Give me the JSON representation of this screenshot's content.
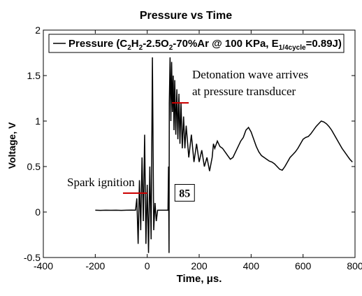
{
  "chart_data": {
    "type": "line",
    "title": "Pressure vs Time",
    "xlabel": "Time, μs.",
    "ylabel": "Voltage, V",
    "xlim": [
      -400,
      800
    ],
    "ylim": [
      -0.5,
      2
    ],
    "x_ticks": [
      -400,
      -200,
      0,
      200,
      400,
      600,
      800
    ],
    "y_ticks": [
      -0.5,
      0,
      0.5,
      1,
      1.5,
      2
    ],
    "x_tick_labels": [
      "-400",
      "-200",
      "0",
      "200",
      "400",
      "600",
      "800"
    ],
    "y_tick_labels": [
      "-0.5",
      "0",
      "0.5",
      "1",
      "1.5",
      "2"
    ],
    "grid": false,
    "legend_position": "top",
    "legend": {
      "prefix": "Pressure (C",
      "sub1": "2",
      "mid1": "H",
      "sub2": "2",
      "mid2": "-2.5O",
      "sub3": "2",
      "mid3": "-70%Ar @ 100 KPa, E",
      "sub4": "1/4cycle",
      "suffix": "=0.89J)"
    },
    "colors": {
      "series": "#000000",
      "annotation_arrow": "#cc0000",
      "axes": "#000000"
    },
    "series": [
      {
        "points": [
          [
            -200,
            0.02
          ],
          [
            -180,
            0.018
          ],
          [
            -160,
            0.02
          ],
          [
            -140,
            0.019
          ],
          [
            -120,
            0.02
          ],
          [
            -100,
            0.018
          ],
          [
            -80,
            0.02
          ],
          [
            -60,
            0.021
          ],
          [
            -45,
            0.02
          ],
          [
            -40,
            0.15
          ],
          [
            -35,
            -0.35
          ],
          [
            -30,
            0.35
          ],
          [
            -25,
            -0.2
          ],
          [
            -20,
            0.6
          ],
          [
            -15,
            -0.1
          ],
          [
            -10,
            0.85
          ],
          [
            -5,
            -0.35
          ],
          [
            0,
            0.3
          ],
          [
            5,
            -0.45
          ],
          [
            10,
            0.5
          ],
          [
            15,
            -0.3
          ],
          [
            20,
            1.7
          ],
          [
            25,
            -0.2
          ],
          [
            30,
            0.1
          ],
          [
            35,
            -0.1
          ],
          [
            40,
            0.02
          ],
          [
            50,
            0.02
          ],
          [
            60,
            0.02
          ],
          [
            70,
            0.02
          ],
          [
            80,
            0.02
          ],
          [
            82,
            0.5
          ],
          [
            84,
            -0.45
          ],
          [
            85,
            1.2
          ],
          [
            88,
            1.7
          ],
          [
            91,
            1.0
          ],
          [
            94,
            1.65
          ],
          [
            97,
            1.1
          ],
          [
            100,
            1.5
          ],
          [
            103,
            0.9
          ],
          [
            106,
            1.45
          ],
          [
            110,
            0.85
          ],
          [
            114,
            1.35
          ],
          [
            118,
            0.8
          ],
          [
            122,
            1.3
          ],
          [
            126,
            0.75
          ],
          [
            130,
            1.2
          ],
          [
            135,
            0.7
          ],
          [
            140,
            1.05
          ],
          [
            145,
            0.7
          ],
          [
            150,
            0.95
          ],
          [
            160,
            0.6
          ],
          [
            170,
            0.85
          ],
          [
            180,
            0.55
          ],
          [
            190,
            0.75
          ],
          [
            200,
            0.55
          ],
          [
            210,
            0.68
          ],
          [
            220,
            0.5
          ],
          [
            230,
            0.6
          ],
          [
            240,
            0.45
          ],
          [
            250,
            0.6
          ],
          [
            255,
            0.75
          ],
          [
            260,
            0.7
          ],
          [
            270,
            0.78
          ],
          [
            280,
            0.72
          ],
          [
            290,
            0.7
          ],
          [
            300,
            0.66
          ],
          [
            310,
            0.62
          ],
          [
            320,
            0.58
          ],
          [
            330,
            0.6
          ],
          [
            340,
            0.66
          ],
          [
            350,
            0.72
          ],
          [
            360,
            0.78
          ],
          [
            370,
            0.82
          ],
          [
            380,
            0.9
          ],
          [
            390,
            0.93
          ],
          [
            400,
            0.88
          ],
          [
            410,
            0.8
          ],
          [
            420,
            0.72
          ],
          [
            430,
            0.66
          ],
          [
            440,
            0.62
          ],
          [
            450,
            0.6
          ],
          [
            460,
            0.58
          ],
          [
            470,
            0.56
          ],
          [
            480,
            0.55
          ],
          [
            490,
            0.53
          ],
          [
            500,
            0.5
          ],
          [
            510,
            0.47
          ],
          [
            520,
            0.46
          ],
          [
            530,
            0.5
          ],
          [
            540,
            0.55
          ],
          [
            550,
            0.6
          ],
          [
            560,
            0.63
          ],
          [
            570,
            0.66
          ],
          [
            580,
            0.7
          ],
          [
            590,
            0.75
          ],
          [
            600,
            0.8
          ],
          [
            610,
            0.82
          ],
          [
            620,
            0.83
          ],
          [
            630,
            0.86
          ],
          [
            640,
            0.9
          ],
          [
            650,
            0.94
          ],
          [
            660,
            0.97
          ],
          [
            670,
            1.0
          ],
          [
            680,
            0.99
          ],
          [
            690,
            0.97
          ],
          [
            700,
            0.94
          ],
          [
            710,
            0.9
          ],
          [
            720,
            0.85
          ],
          [
            730,
            0.8
          ],
          [
            740,
            0.75
          ],
          [
            750,
            0.7
          ],
          [
            760,
            0.66
          ],
          [
            770,
            0.62
          ],
          [
            780,
            0.58
          ],
          [
            790,
            0.55
          ]
        ]
      }
    ],
    "annotations": [
      {
        "text": "Detonation wave arrives",
        "text2": "at pressure transducer",
        "point_x": 90,
        "point_y": 1.2
      },
      {
        "text": "Spark ignition",
        "point_x": 0,
        "point_y": 0.2
      },
      {
        "text": "85",
        "point_x": 85,
        "point_y": 0.25
      }
    ]
  }
}
